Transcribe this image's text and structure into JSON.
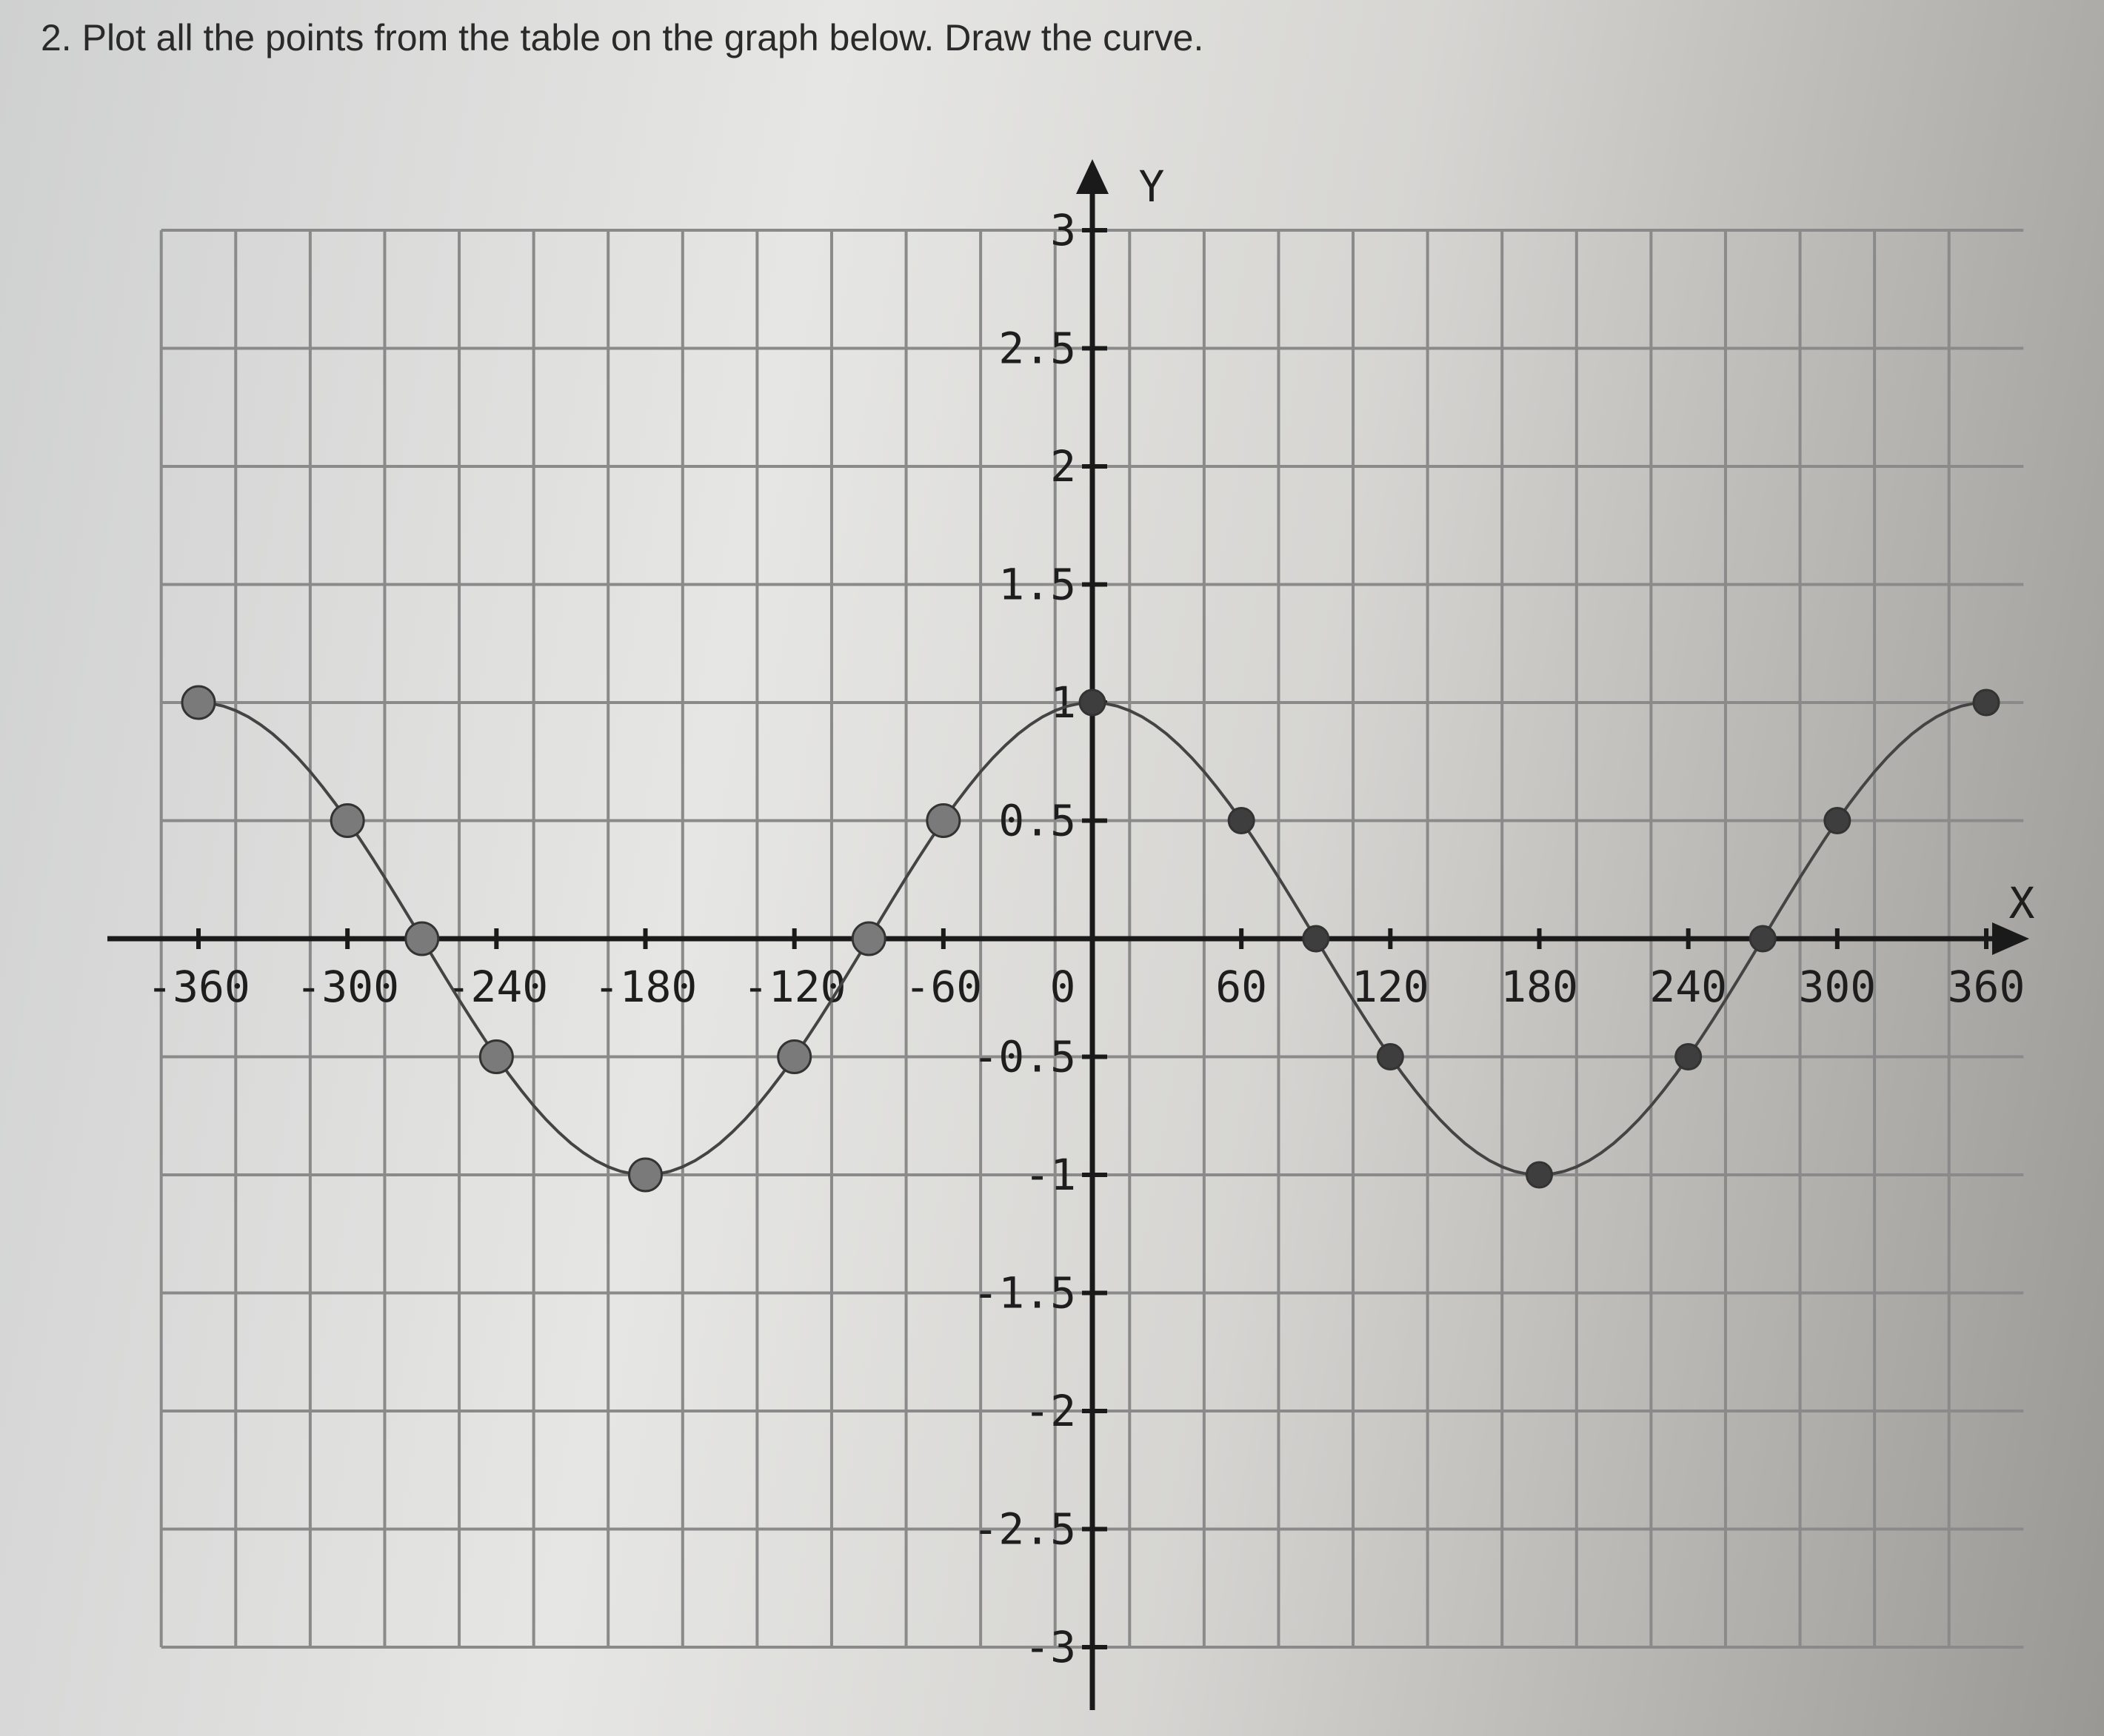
{
  "question": {
    "title": "2. Plot all the points from the table on the graph below. Draw the curve."
  },
  "chart_data": {
    "type": "line",
    "title": "",
    "xlabel": "X",
    "ylabel": "Y",
    "xlim": [
      -360,
      360
    ],
    "ylim": [
      -3,
      3
    ],
    "grid": true,
    "x_ticks": [
      -360,
      -300,
      -240,
      -180,
      -120,
      -60,
      0,
      60,
      120,
      180,
      240,
      300,
      360
    ],
    "x_tick_labels": [
      "-360",
      "-300",
      "-240",
      "-180",
      "-120",
      "-60",
      "0",
      "60",
      "120",
      "180",
      "240",
      "300",
      "360"
    ],
    "y_ticks": [
      3,
      2.5,
      2,
      1.5,
      1,
      0.5,
      -0.5,
      -1,
      -1.5,
      -2,
      -2.5,
      -3
    ],
    "y_tick_labels": [
      "3",
      "2.5",
      "2",
      "1.5",
      "1",
      "0.5",
      "-0.5",
      "-1",
      "-1.5",
      "-2",
      "-2.5",
      "-3"
    ],
    "series": [
      {
        "x": [
          -360,
          -300,
          -270,
          -240,
          -180,
          -120,
          -90,
          -60,
          0,
          60,
          90,
          120,
          180,
          240,
          270,
          300,
          360
        ],
        "y": [
          1,
          0.5,
          0,
          -0.5,
          -1,
          -0.5,
          0,
          0.5,
          1,
          0.5,
          0,
          -0.5,
          -1,
          -0.5,
          0,
          0.5,
          1
        ]
      }
    ],
    "colors": {
      "grid": "#8a8a8a",
      "axis": "#1a1a1a",
      "points": "#5a5a5a",
      "curve": "#444444"
    }
  }
}
